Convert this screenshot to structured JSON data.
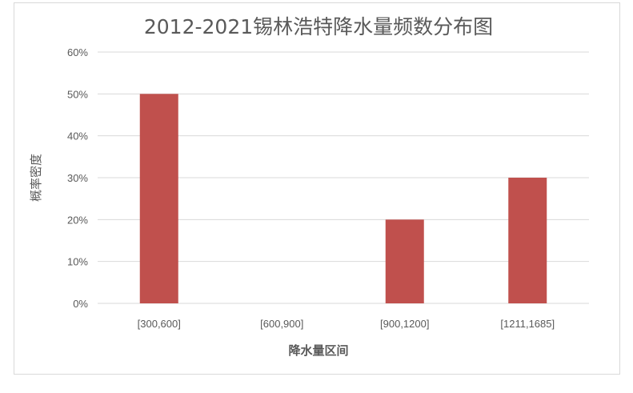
{
  "chart_data": {
    "type": "bar",
    "title": "2012-2021锡林浩特降水量频数分布图",
    "xlabel": "降水量区间",
    "ylabel": "概率密度",
    "categories": [
      "[300,600]",
      "[600,900]",
      "[900,1200]",
      "[1211,1685]"
    ],
    "values": [
      0.5,
      0,
      0.2,
      0.3
    ],
    "ylim": [
      0,
      0.6
    ],
    "yticks": [
      "0%",
      "10%",
      "20%",
      "30%",
      "40%",
      "50%",
      "60%"
    ],
    "grid": true,
    "bar_color": "#c0504d"
  }
}
